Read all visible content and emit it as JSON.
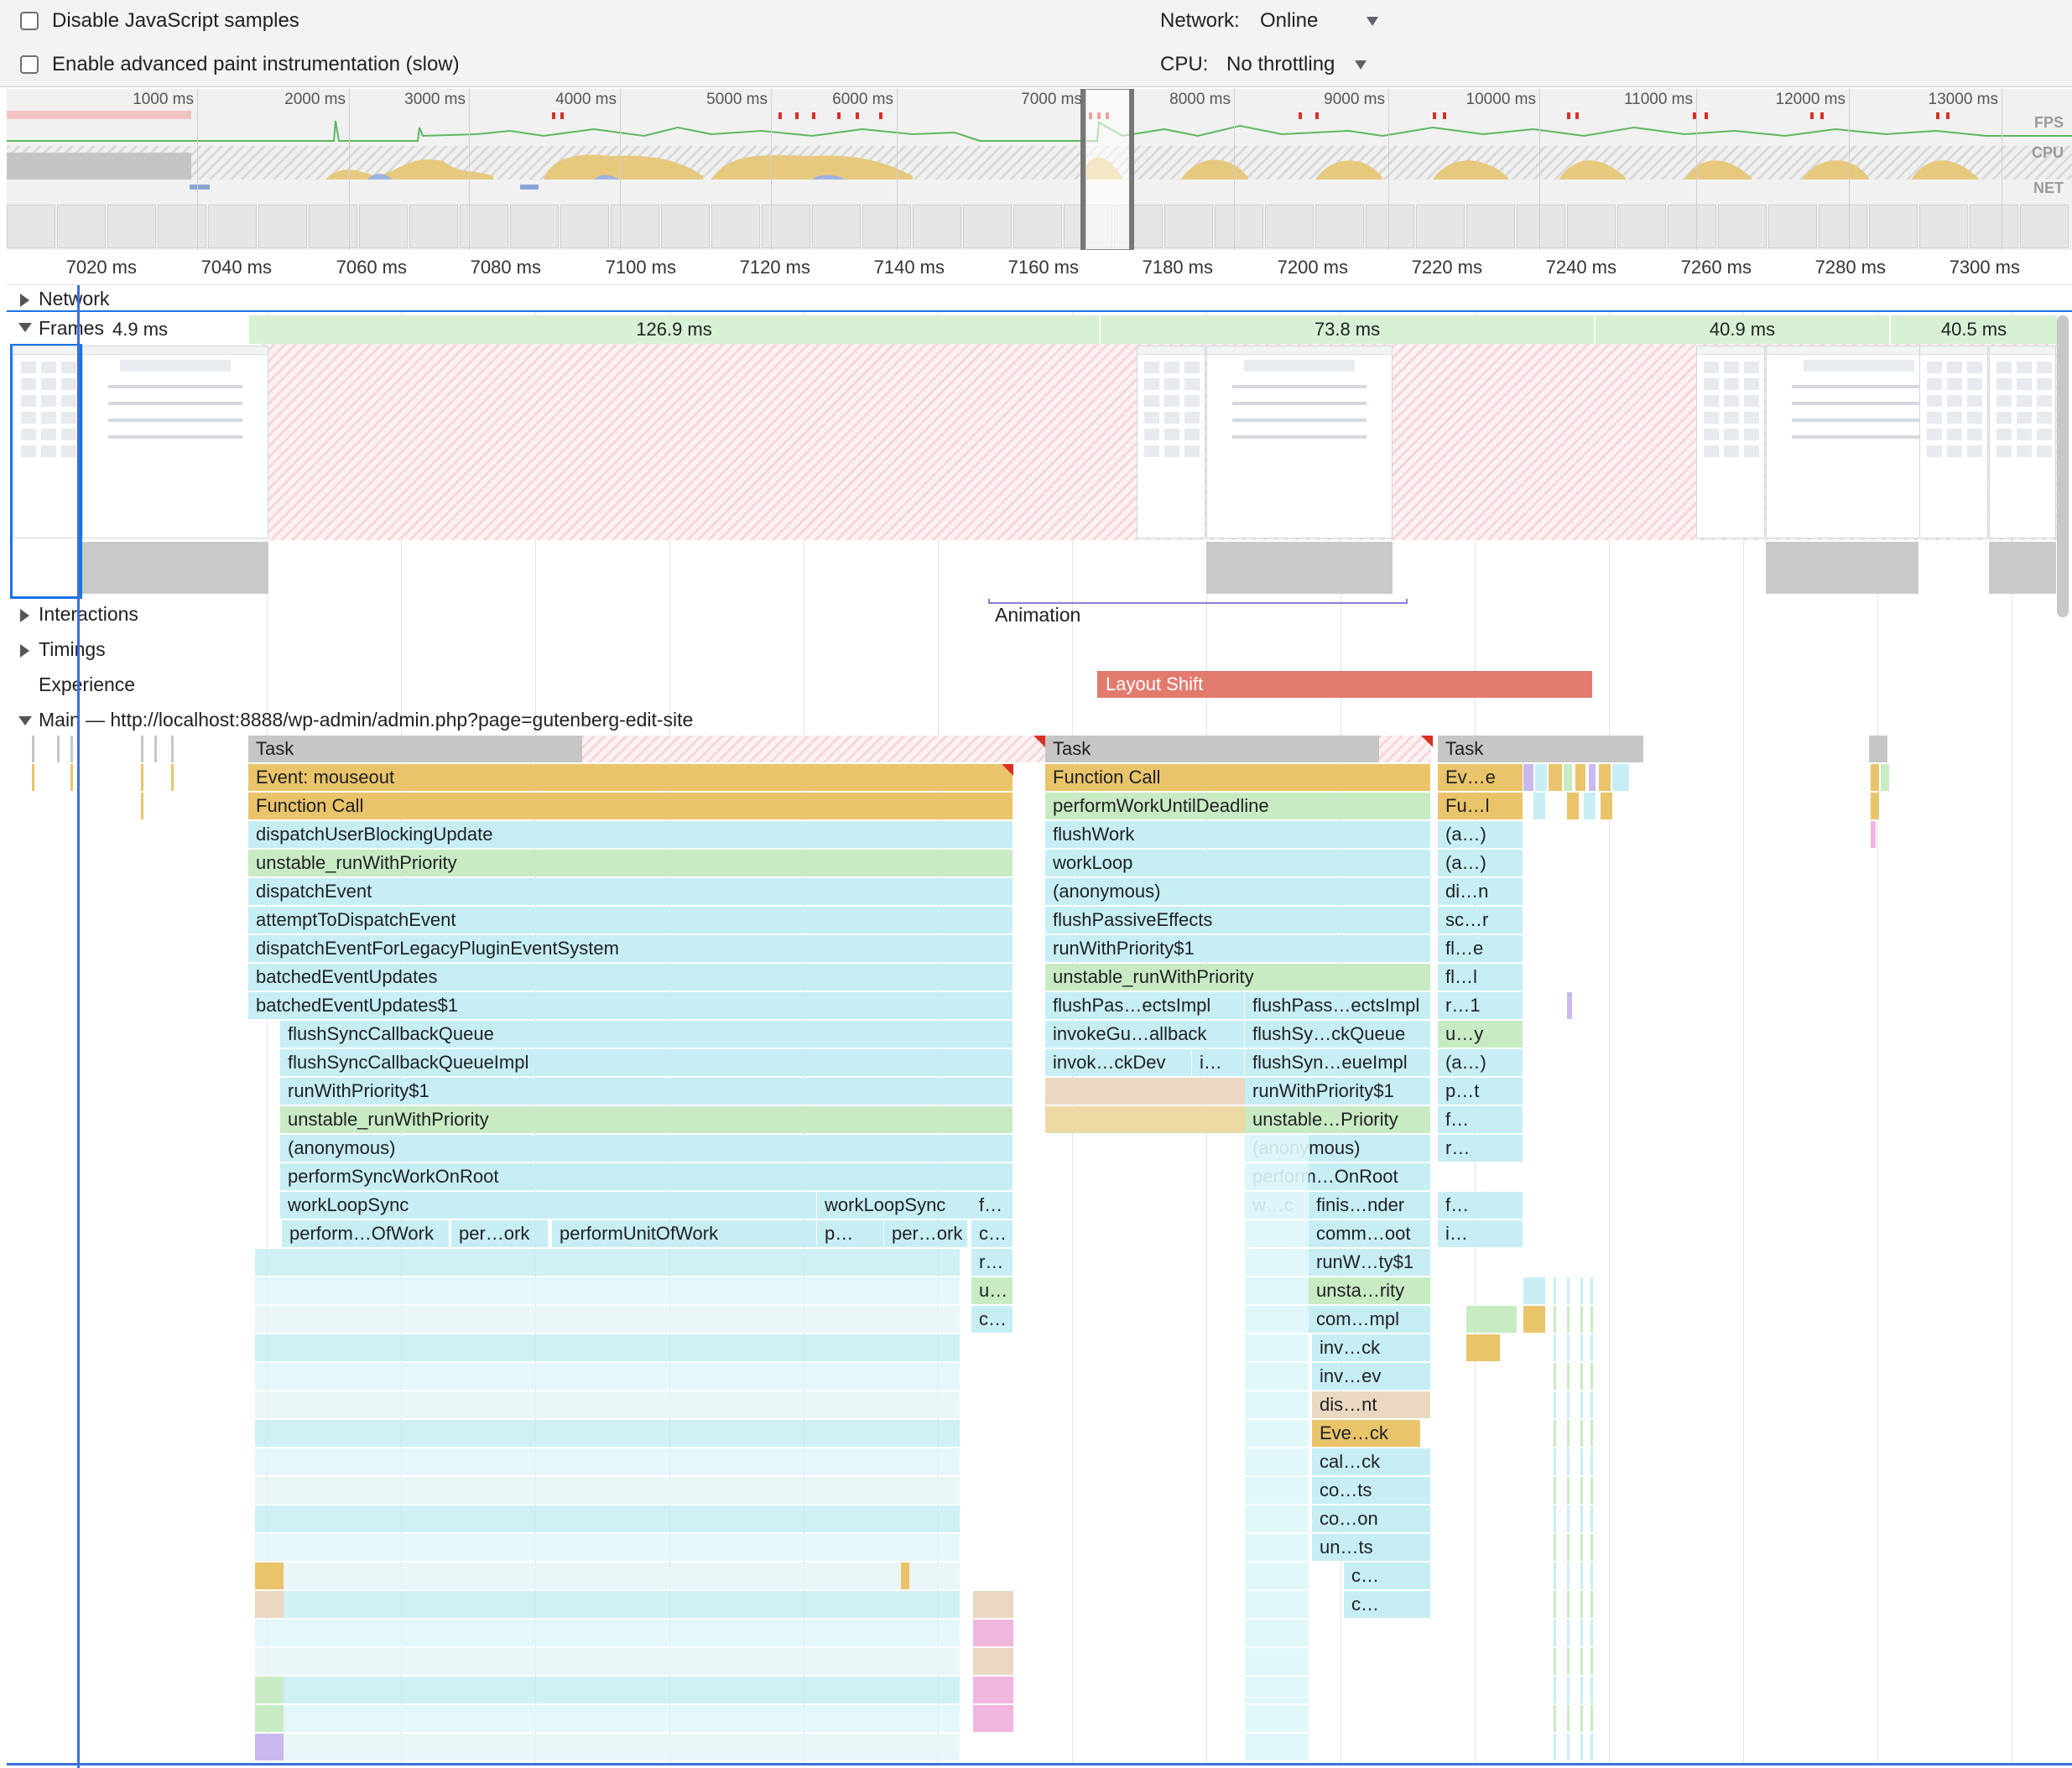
{
  "settings": {
    "disable_js_samples": "Disable JavaScript samples",
    "advanced_paint": "Enable advanced paint instrumentation (slow)",
    "network_label": "Network:",
    "network_value": "Online",
    "cpu_label": "CPU:",
    "cpu_value": "No throttling"
  },
  "overview": {
    "ticks": [
      "1000 ms",
      "2000 ms",
      "3000 ms",
      "4000 ms",
      "5000 ms",
      "6000 ms",
      "7000 ms",
      "8000 ms",
      "9000 ms",
      "10000 ms",
      "11000 ms",
      "12000 ms",
      "13000 ms"
    ],
    "lanes": {
      "fps": "FPS",
      "cpu": "CPU",
      "net": "NET"
    }
  },
  "ruler": {
    "ticks": [
      "7020 ms",
      "7040 ms",
      "7060 ms",
      "7080 ms",
      "7100 ms",
      "7120 ms",
      "7140 ms",
      "7160 ms",
      "7180 ms",
      "7200 ms",
      "7220 ms",
      "7240 ms",
      "7260 ms",
      "7280 ms",
      "7300 ms"
    ]
  },
  "tracks": {
    "network": "Network",
    "frames": "Frames",
    "interactions": "Interactions",
    "timings": "Timings",
    "experience": "Experience",
    "main": "Main",
    "main_url": "— http://localhost:8888/wp-admin/admin.php?page=gutenberg-edit-site"
  },
  "frames": {
    "durations": [
      "4.9 ms",
      "126.9 ms",
      "73.8 ms",
      "40.9 ms",
      "40.5 ms"
    ]
  },
  "interactions": {
    "animation": "Animation"
  },
  "experience": {
    "layout_shift": "Layout Shift"
  },
  "flame": {
    "col1": [
      "Task",
      "Event: mouseout",
      "Function Call",
      "dispatchUserBlockingUpdate",
      "unstable_runWithPriority",
      "dispatchEvent",
      "attemptToDispatchEvent",
      "dispatchEventForLegacyPluginEventSystem",
      "batchedEventUpdates",
      "batchedEventUpdates$1",
      "flushSyncCallbackQueue",
      "flushSyncCallbackQueueImpl",
      "runWithPriority$1",
      "unstable_runWithPriority",
      "(anonymous)",
      "performSyncWorkOnRoot",
      "workLoopSync",
      "perform…OfWork",
      "per…ork",
      "performUnitOfWork",
      "workLoopSync",
      "f…",
      "p…",
      "per…ork",
      "c…",
      "r…",
      "u…",
      "c…"
    ],
    "col2": [
      "Task",
      "Function Call",
      "performWorkUntilDeadline",
      "flushWork",
      "workLoop",
      "(anonymous)",
      "flushPassiveEffects",
      "runWithPriority$1",
      "unstable_runWithPriority",
      "flushPas…ectsImpl",
      "flushPass…ectsImpl",
      "invokeGu…allback",
      "flushSy…ckQueue",
      "invok…ckDev",
      "i…",
      "flushSyn…eueImpl",
      "runWithPriority$1",
      "unstable…Priority",
      "(anonymous)",
      "perform…OnRoot",
      "w…c",
      "finis…nder",
      "comm…oot",
      "runW…ty$1",
      "unsta…rity",
      "com…mpl",
      "inv…ck",
      "inv…ev",
      "dis…nt",
      "Eve…ck",
      "cal…ck",
      "co…ts",
      "co…on",
      "un…ts",
      "c…",
      "c…"
    ],
    "col3": [
      "Task",
      "Ev…e",
      "Fu…l",
      "(a…)",
      "(a…)",
      "di…n",
      "sc…r",
      "fl…e",
      "fl…l",
      "r…1",
      "u…y",
      "(a…)",
      "p…t",
      "f…",
      "r…",
      "f…",
      "i…"
    ]
  }
}
